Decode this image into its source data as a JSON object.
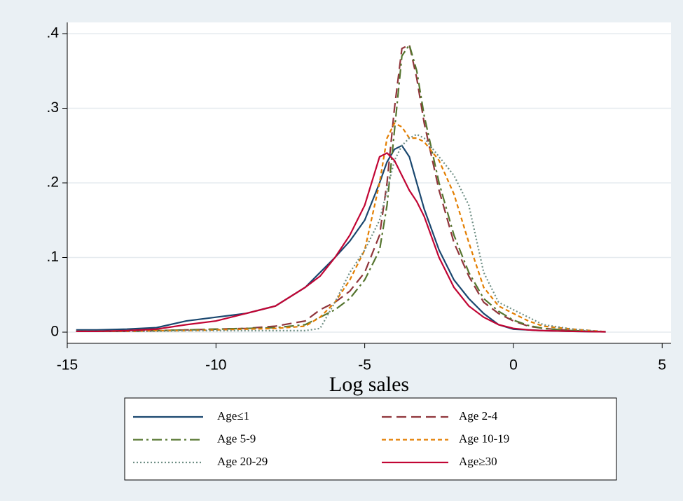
{
  "chart_data": {
    "type": "line",
    "x_label": "Log sales",
    "x": [
      -14.7,
      -14,
      -13,
      -12,
      -11,
      -10,
      -9,
      -8,
      -7,
      -6.5,
      -6,
      -5.5,
      -5,
      -4.5,
      -4.25,
      -4,
      -3.75,
      -3.5,
      -3.25,
      -3,
      -2.5,
      -2,
      -1.5,
      -1,
      -0.5,
      0,
      0.5,
      1,
      2,
      3.1
    ],
    "xlim": [
      -15,
      5.3
    ],
    "xticks": [
      -15,
      -10,
      -5,
      0,
      5
    ],
    "ylim": [
      -0.015,
      0.415
    ],
    "yticks": [
      0,
      {
        "value": 0.1,
        "label": ".1"
      },
      {
        "value": 0.2,
        "label": ".2"
      },
      {
        "value": 0.3,
        "label": ".3"
      },
      {
        "value": 0.4,
        "label": ".4"
      }
    ],
    "grid": true,
    "series": [
      {
        "name": "Age≤1",
        "color": "#1a476f",
        "dash": "none",
        "values": [
          0.003,
          0.003,
          0.004,
          0.006,
          0.015,
          0.02,
          0.025,
          0.035,
          0.06,
          0.08,
          0.1,
          0.122,
          0.15,
          0.2,
          0.228,
          0.245,
          0.25,
          0.235,
          0.2,
          0.165,
          0.11,
          0.07,
          0.045,
          0.025,
          0.01,
          0.004,
          0.003,
          0.002,
          0.001,
          0.0005
        ]
      },
      {
        "name": "Age 2-4",
        "color": "#90353b",
        "dash": "14 7",
        "values": [
          0.001,
          0.001,
          0.001,
          0.002,
          0.003,
          0.004,
          0.005,
          0.008,
          0.015,
          0.03,
          0.04,
          0.055,
          0.08,
          0.13,
          0.2,
          0.3,
          0.38,
          0.385,
          0.34,
          0.28,
          0.19,
          0.12,
          0.075,
          0.04,
          0.025,
          0.015,
          0.008,
          0.005,
          0.002,
          0.0005
        ]
      },
      {
        "name": "Age 5-9",
        "color": "#55752f",
        "dash": "14 5 3 5",
        "values": [
          0.001,
          0.001,
          0.001,
          0.002,
          0.003,
          0.004,
          0.005,
          0.006,
          0.01,
          0.02,
          0.03,
          0.045,
          0.07,
          0.11,
          0.17,
          0.27,
          0.37,
          0.385,
          0.35,
          0.29,
          0.2,
          0.13,
          0.08,
          0.045,
          0.028,
          0.016,
          0.009,
          0.005,
          0.002,
          0.0005
        ]
      },
      {
        "name": "Age 10-19",
        "color": "#e37e00",
        "dash": "6 4",
        "values": [
          0.001,
          0.001,
          0.001,
          0.002,
          0.002,
          0.003,
          0.004,
          0.005,
          0.008,
          0.02,
          0.04,
          0.07,
          0.11,
          0.2,
          0.26,
          0.28,
          0.275,
          0.26,
          0.26,
          0.255,
          0.23,
          0.185,
          0.12,
          0.06,
          0.035,
          0.025,
          0.015,
          0.008,
          0.004,
          0.0005
        ]
      },
      {
        "name": "Age 20-29",
        "color": "#6e8e84",
        "dash": "2 3",
        "values": [
          0.001,
          0.001,
          0.001,
          0.001,
          0.002,
          0.002,
          0.002,
          0.002,
          0.002,
          0.005,
          0.04,
          0.08,
          0.11,
          0.15,
          0.19,
          0.23,
          0.25,
          0.26,
          0.265,
          0.26,
          0.235,
          0.21,
          0.17,
          0.08,
          0.04,
          0.03,
          0.02,
          0.01,
          0.004,
          0.0005
        ]
      },
      {
        "name": "Age≥30",
        "color": "#c10534",
        "dash": "none",
        "values": [
          0.001,
          0.001,
          0.002,
          0.004,
          0.01,
          0.015,
          0.025,
          0.035,
          0.06,
          0.075,
          0.1,
          0.13,
          0.17,
          0.235,
          0.24,
          0.23,
          0.21,
          0.19,
          0.175,
          0.155,
          0.1,
          0.06,
          0.035,
          0.02,
          0.01,
          0.005,
          0.003,
          0.002,
          0.001,
          0.0005
        ]
      }
    ]
  }
}
